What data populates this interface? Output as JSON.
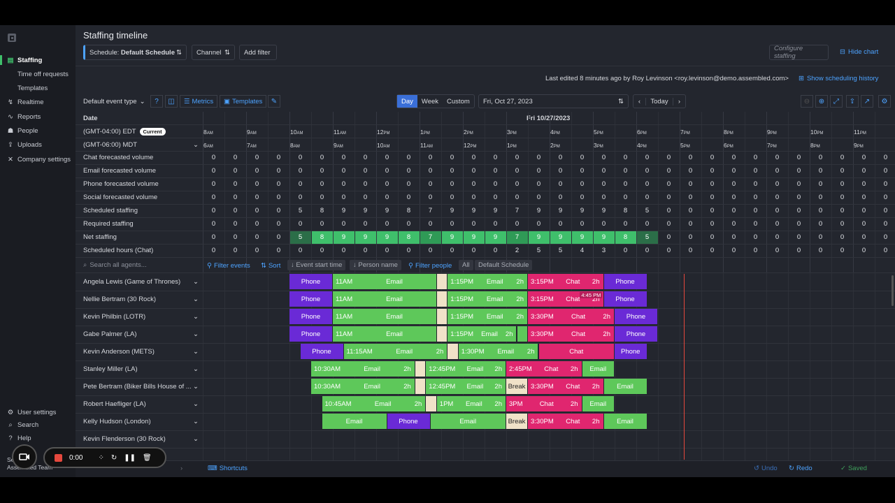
{
  "sidebar": {
    "items": [
      {
        "label": "Staffing",
        "icon": "briefcase-icon",
        "active": true
      },
      {
        "label": "Time off requests",
        "sub": true
      },
      {
        "label": "Templates",
        "sub": true
      },
      {
        "label": "Realtime",
        "icon": "bolt-icon"
      },
      {
        "label": "Reports",
        "icon": "chart-icon"
      },
      {
        "label": "People",
        "icon": "people-icon"
      },
      {
        "label": "Uploads",
        "icon": "upload-icon"
      },
      {
        "label": "Company settings",
        "icon": "wrench-icon"
      }
    ],
    "bottom": [
      {
        "label": "User settings",
        "icon": "gear-icon"
      },
      {
        "label": "Search",
        "icon": "search-icon"
      },
      {
        "label": "Help",
        "icon": "help-icon"
      }
    ],
    "team_prefix": "Se",
    "team": "Assembled Team"
  },
  "recorder": {
    "time": "0:00"
  },
  "header": {
    "title": "Staffing timeline",
    "schedule_prefix": "Schedule:",
    "schedule_value": "Default Schedule",
    "channel": "Channel",
    "add_filter": "Add filter",
    "configure": "Configure staffing",
    "hide_chart": "Hide chart",
    "last_edited": "Last edited 8 minutes ago by Roy Levinson <roy.levinson@demo.assembled.com>",
    "show_history": "Show scheduling history"
  },
  "toolbar": {
    "event_type": "Default event type",
    "metrics": "Metrics",
    "templates": "Templates",
    "views": [
      "Day",
      "Week",
      "Custom"
    ],
    "date": "Fri, Oct 27, 2023",
    "today": "Today"
  },
  "grid": {
    "date_label": "Date",
    "date_header": "Fri 10/27/2023",
    "tz1": "(GMT-04:00) EDT",
    "tz1_badge": "Current",
    "tz2": "(GMT-06:00) MDT",
    "hours1": [
      {
        "n": "8",
        "s": "AM"
      },
      {
        "n": "9",
        "s": "AM"
      },
      {
        "n": "10",
        "s": "AM"
      },
      {
        "n": "11",
        "s": "AM"
      },
      {
        "n": "12",
        "s": "PM"
      },
      {
        "n": "1",
        "s": "PM"
      },
      {
        "n": "2",
        "s": "PM"
      },
      {
        "n": "3",
        "s": "PM"
      },
      {
        "n": "4",
        "s": "PM"
      },
      {
        "n": "5",
        "s": "PM"
      },
      {
        "n": "6",
        "s": "PM"
      },
      {
        "n": "7",
        "s": "PM"
      },
      {
        "n": "8",
        "s": "PM"
      },
      {
        "n": "9",
        "s": "PM"
      },
      {
        "n": "10",
        "s": "PM"
      },
      {
        "n": "11",
        "s": "PM"
      }
    ],
    "hours2": [
      {
        "n": "6",
        "s": "AM"
      },
      {
        "n": "7",
        "s": "AM"
      },
      {
        "n": "8",
        "s": "AM"
      },
      {
        "n": "9",
        "s": "AM"
      },
      {
        "n": "10",
        "s": "AM"
      },
      {
        "n": "11",
        "s": "AM"
      },
      {
        "n": "12",
        "s": "PM"
      },
      {
        "n": "1",
        "s": "PM"
      },
      {
        "n": "2",
        "s": "PM"
      },
      {
        "n": "3",
        "s": "PM"
      },
      {
        "n": "4",
        "s": "PM"
      },
      {
        "n": "5",
        "s": "PM"
      },
      {
        "n": "6",
        "s": "PM"
      },
      {
        "n": "7",
        "s": "PM"
      },
      {
        "n": "8",
        "s": "PM"
      },
      {
        "n": "9",
        "s": "PM"
      }
    ],
    "metrics": [
      {
        "label": "Chat forecasted volume",
        "values": [
          0,
          0,
          0,
          0,
          0,
          0,
          0,
          0,
          0,
          0,
          0,
          0,
          0,
          0,
          0,
          0,
          0,
          0,
          0,
          0,
          0,
          0,
          0,
          0,
          0,
          0,
          0,
          0,
          0,
          0,
          0,
          0
        ]
      },
      {
        "label": "Email forecasted volume",
        "values": [
          0,
          0,
          0,
          0,
          0,
          0,
          0,
          0,
          0,
          0,
          0,
          0,
          0,
          0,
          0,
          0,
          0,
          0,
          0,
          0,
          0,
          0,
          0,
          0,
          0,
          0,
          0,
          0,
          0,
          0,
          0,
          0
        ]
      },
      {
        "label": "Phone forecasted volume",
        "values": [
          0,
          0,
          0,
          0,
          0,
          0,
          0,
          0,
          0,
          0,
          0,
          0,
          0,
          0,
          0,
          0,
          0,
          0,
          0,
          0,
          0,
          0,
          0,
          0,
          0,
          0,
          0,
          0,
          0,
          0,
          0,
          0
        ]
      },
      {
        "label": "Social forecasted volume",
        "values": [
          0,
          0,
          0,
          0,
          0,
          0,
          0,
          0,
          0,
          0,
          0,
          0,
          0,
          0,
          0,
          0,
          0,
          0,
          0,
          0,
          0,
          0,
          0,
          0,
          0,
          0,
          0,
          0,
          0,
          0,
          0,
          0
        ]
      },
      {
        "label": "Scheduled staffing",
        "values": [
          0,
          0,
          0,
          0,
          5,
          8,
          9,
          9,
          9,
          8,
          7,
          9,
          9,
          9,
          7,
          9,
          9,
          9,
          9,
          8,
          5,
          0,
          0,
          0,
          0,
          0,
          0,
          0,
          0,
          0,
          0,
          0
        ]
      },
      {
        "label": "Required staffing",
        "values": [
          0,
          0,
          0,
          0,
          0,
          0,
          0,
          0,
          0,
          0,
          0,
          0,
          0,
          0,
          0,
          0,
          0,
          0,
          0,
          0,
          0,
          0,
          0,
          0,
          0,
          0,
          0,
          0,
          0,
          0,
          0,
          0
        ]
      },
      {
        "label": "Net staffing",
        "values": [
          0,
          0,
          0,
          0,
          5,
          8,
          9,
          9,
          9,
          8,
          7,
          9,
          9,
          9,
          7,
          9,
          9,
          9,
          9,
          8,
          5,
          0,
          0,
          0,
          0,
          0,
          0,
          0,
          0,
          0,
          0,
          0
        ],
        "heat": true
      },
      {
        "label": "Scheduled hours (Chat)",
        "values": [
          0,
          0,
          0,
          0,
          0,
          0,
          0,
          0,
          0,
          0,
          0,
          0,
          0,
          0,
          2,
          5,
          5,
          4,
          3,
          0,
          0,
          0,
          0,
          0,
          0,
          0,
          0,
          0,
          0,
          0,
          0,
          0
        ]
      }
    ],
    "heat_colors": {
      "high": "#3fbf6b",
      "mid": "#2f9a56",
      "low": "#2b6e48"
    }
  },
  "filters": {
    "search_placeholder": "Search all agents...",
    "filter_events": "Filter events",
    "sort": "Sort",
    "event_start": "Event start time",
    "person_name": "Person name",
    "filter_people": "Filter people",
    "all": "All",
    "default_schedule": "Default Schedule"
  },
  "agents": [
    {
      "name": "Angela Lewis (Game of Thrones)",
      "blocks": [
        {
          "k": "phone",
          "s": 10,
          "e": 11,
          "m": "Phone"
        },
        {
          "k": "email",
          "s": 11,
          "e": 13.4,
          "t": "11AM",
          "m": "Email"
        },
        {
          "k": "brk",
          "s": 13.4,
          "e": 13.65,
          "m": ""
        },
        {
          "k": "email",
          "s": 13.65,
          "e": 15.5,
          "t": "1:15PM",
          "m": "Email",
          "d": "2h"
        },
        {
          "k": "chat",
          "s": 15.5,
          "e": 17.25,
          "t": "3:15PM",
          "m": "Chat",
          "d": "2h"
        },
        {
          "k": "phone",
          "s": 17.25,
          "e": 18.25,
          "m": "Phone"
        }
      ]
    },
    {
      "name": "Nellie Bertram (30 Rock)",
      "blocks": [
        {
          "k": "phone",
          "s": 10,
          "e": 11,
          "m": "Phone"
        },
        {
          "k": "email",
          "s": 11,
          "e": 13.4,
          "t": "11AM",
          "m": "Email"
        },
        {
          "k": "brk",
          "s": 13.4,
          "e": 13.65,
          "m": ""
        },
        {
          "k": "email",
          "s": 13.65,
          "e": 15.5,
          "t": "1:15PM",
          "m": "Email",
          "d": "2h"
        },
        {
          "k": "chat",
          "s": 15.5,
          "e": 17.25,
          "t": "3:15PM",
          "m": "Chat",
          "d": "2h"
        },
        {
          "k": "phone",
          "s": 17.25,
          "e": 18.25,
          "m": "Phone"
        }
      ],
      "tooltip": "4:45 PM"
    },
    {
      "name": "Kevin Philbin (LOTR)",
      "blocks": [
        {
          "k": "phone",
          "s": 10,
          "e": 11,
          "m": "Phone"
        },
        {
          "k": "email",
          "s": 11,
          "e": 13.4,
          "t": "11AM",
          "m": "Email"
        },
        {
          "k": "brk",
          "s": 13.4,
          "e": 13.65,
          "m": ""
        },
        {
          "k": "email",
          "s": 13.65,
          "e": 15.5,
          "t": "1:15PM",
          "m": "Email",
          "d": "2h"
        },
        {
          "k": "chat",
          "s": 15.5,
          "e": 17.5,
          "t": "3:30PM",
          "m": "Chat",
          "d": "2h"
        },
        {
          "k": "phone",
          "s": 17.5,
          "e": 18.5,
          "m": "Phone"
        }
      ]
    },
    {
      "name": "Gabe Palmer (LA)",
      "blocks": [
        {
          "k": "phone",
          "s": 10,
          "e": 11,
          "m": "Phone"
        },
        {
          "k": "email",
          "s": 11,
          "e": 13.4,
          "t": "11AM",
          "m": "Email"
        },
        {
          "k": "brk",
          "s": 13.4,
          "e": 13.65,
          "m": ""
        },
        {
          "k": "email",
          "s": 13.65,
          "e": 15.25,
          "t": "1:15PM",
          "m": "Email",
          "d": "2h"
        },
        {
          "k": "email",
          "s": 15.25,
          "e": 15.5,
          "m": ""
        },
        {
          "k": "chat",
          "s": 15.5,
          "e": 17.5,
          "t": "3:30PM",
          "m": "Chat",
          "d": "2h"
        },
        {
          "k": "phone",
          "s": 17.5,
          "e": 18.5,
          "m": "Phone"
        }
      ]
    },
    {
      "name": "Kevin Anderson (METS)",
      "blocks": [
        {
          "k": "phone",
          "s": 10.25,
          "e": 11.25,
          "m": "Phone"
        },
        {
          "k": "email",
          "s": 11.25,
          "e": 13.65,
          "t": "11:15AM",
          "m": "Email",
          "d": "2h"
        },
        {
          "k": "brk",
          "s": 13.65,
          "e": 13.9,
          "m": ""
        },
        {
          "k": "email",
          "s": 13.9,
          "e": 15.75,
          "t": "1:30PM",
          "m": "Email",
          "d": "2h"
        },
        {
          "k": "chat",
          "s": 15.75,
          "e": 17.5,
          "m": "Chat"
        },
        {
          "k": "phone",
          "s": 17.5,
          "e": 18.25,
          "m": "Phone"
        }
      ]
    },
    {
      "name": "Stanley Miller (LA)",
      "blocks": [
        {
          "k": "email",
          "s": 10.5,
          "e": 12.9,
          "t": "10:30AM",
          "m": "Email",
          "d": "2h"
        },
        {
          "k": "brk",
          "s": 12.9,
          "e": 13.15,
          "m": ""
        },
        {
          "k": "email",
          "s": 13.15,
          "e": 15,
          "t": "12:45PM",
          "m": "Email",
          "d": "2h"
        },
        {
          "k": "chat",
          "s": 15,
          "e": 16.75,
          "t": "2:45PM",
          "m": "Chat",
          "d": "2h"
        },
        {
          "k": "email",
          "s": 16.75,
          "e": 17.5,
          "m": "Email"
        }
      ]
    },
    {
      "name": "Pete Bertram (Biker Bills House of ...",
      "blocks": [
        {
          "k": "email",
          "s": 10.5,
          "e": 12.9,
          "t": "10:30AM",
          "m": "Email",
          "d": "2h"
        },
        {
          "k": "brk",
          "s": 12.9,
          "e": 13.15,
          "m": ""
        },
        {
          "k": "email",
          "s": 13.15,
          "e": 15,
          "t": "12:45PM",
          "m": "Email",
          "d": "2h"
        },
        {
          "k": "brk",
          "s": 15,
          "e": 15.5,
          "m": "Break"
        },
        {
          "k": "chat",
          "s": 15.5,
          "e": 17.25,
          "t": "3:30PM",
          "m": "Chat",
          "d": "2h"
        },
        {
          "k": "email",
          "s": 17.25,
          "e": 18.25,
          "m": "Email"
        }
      ]
    },
    {
      "name": "Robert Haefliger (LA)",
      "blocks": [
        {
          "k": "email",
          "s": 10.75,
          "e": 13.15,
          "t": "10:45AM",
          "m": "Email",
          "d": "2h"
        },
        {
          "k": "brk",
          "s": 13.15,
          "e": 13.4,
          "m": ""
        },
        {
          "k": "email",
          "s": 13.4,
          "e": 15,
          "t": "1PM",
          "m": "Email",
          "d": "2h"
        },
        {
          "k": "chat",
          "s": 15,
          "e": 16.75,
          "t": "3PM",
          "m": "Chat",
          "d": "2h"
        },
        {
          "k": "email",
          "s": 16.75,
          "e": 17.5,
          "m": "Email"
        }
      ]
    },
    {
      "name": "Kelly Hudson (London)",
      "blocks": [
        {
          "k": "email",
          "s": 10.75,
          "e": 12.25,
          "m": "Email"
        },
        {
          "k": "phone",
          "s": 12.25,
          "e": 13.25,
          "m": "Phone"
        },
        {
          "k": "email",
          "s": 13.25,
          "e": 15,
          "m": "Email"
        },
        {
          "k": "brk",
          "s": 15,
          "e": 15.5,
          "m": "Break"
        },
        {
          "k": "chat",
          "s": 15.5,
          "e": 17.25,
          "t": "3:30PM",
          "m": "Chat",
          "d": "2h"
        },
        {
          "k": "email",
          "s": 17.25,
          "e": 18.25,
          "m": "Email"
        }
      ]
    },
    {
      "name": "Kevin Flenderson (30 Rock)",
      "blocks": []
    }
  ],
  "footer": {
    "shortcuts": "Shortcuts",
    "undo": "Undo",
    "redo": "Redo",
    "saved": "Saved"
  }
}
